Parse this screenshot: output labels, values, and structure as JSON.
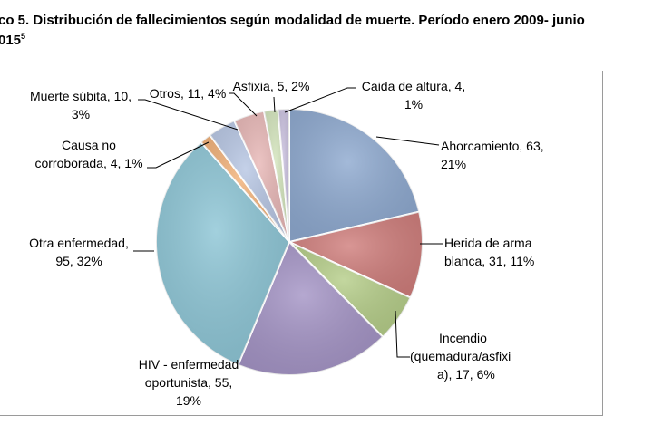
{
  "title": {
    "line1": "co 5. Distribución de fallecimientos según modalidad de muerte. Período enero 2009- junio",
    "line2": "015",
    "sup": "5"
  },
  "chart_data": {
    "type": "pie",
    "start": "12 o'clock, clockwise",
    "slices": [
      {
        "label": "Ahorcamiento",
        "value": 63,
        "percent": "21%",
        "text": [
          "Ahorcamiento, 63,",
          "21%"
        ],
        "color": "#8faad0"
      },
      {
        "label": "Herida de arma blanca",
        "value": 31,
        "percent": "11%",
        "text": [
          "Herida de arma",
          "blanca, 31, 11%"
        ],
        "color": "#d07f7d"
      },
      {
        "label": "Incendio (quemadura/asfixia)",
        "value": 17,
        "percent": "6%",
        "text": [
          "Incendio",
          "(quemadura/asfixi",
          "a), 17, 6%"
        ],
        "color": "#b6ce8a"
      },
      {
        "label": "HIV - enfermedad oportunista",
        "value": 55,
        "percent": "19%",
        "text": [
          "HIV - enfermedad",
          "oportunista, 55,",
          "19%"
        ],
        "color": "#a595c6"
      },
      {
        "label": "Otra enfermedad",
        "value": 95,
        "percent": "32%",
        "text": [
          "Otra enfermedad,",
          "95, 32%"
        ],
        "color": "#8ec6d6"
      },
      {
        "label": "Causa no corroborada",
        "value": 4,
        "percent": "1%",
        "text": [
          "Causa no",
          "corroborada, 4, 1%"
        ],
        "color": "#f2b27a"
      },
      {
        "label": "Muerte súbita",
        "value": 10,
        "percent": "3%",
        "text": [
          "Muerte súbita, 10,",
          "3%"
        ],
        "color": "#b8c7e4"
      },
      {
        "label": "Otros",
        "value": 11,
        "percent": "4%",
        "text": [
          "Otros, 11, 4%"
        ],
        "color": "#e8b8b7"
      },
      {
        "label": "Asfixia",
        "value": 5,
        "percent": "2%",
        "text": [
          "Asfixia, 5, 2%"
        ],
        "color": "#d4e5bd"
      },
      {
        "label": "Caida de altura",
        "value": 4,
        "percent": "1%",
        "text": [
          "Caida de altura, 4,",
          "1%"
        ],
        "color": "#cbc2e0"
      }
    ]
  }
}
